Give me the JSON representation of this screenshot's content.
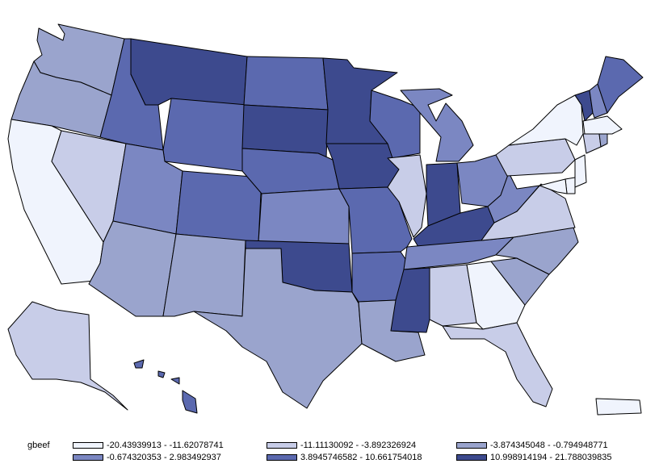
{
  "legend": {
    "title": "gbeef",
    "bins": [
      {
        "label": "-20.43939913 - -11.62078741",
        "color": "#f0f4fd"
      },
      {
        "label": "-11.11130092 - -3.892326924",
        "color": "#c8cde8"
      },
      {
        "label": "-3.874345048 - -0.794948771",
        "color": "#9aa4cd"
      },
      {
        "label": "-0.674320353 - 2.983492937",
        "color": "#7b87c2"
      },
      {
        "label": "3.8945746582 - 10.661754018",
        "color": "#5b69af"
      },
      {
        "label": "10.998914194 - 21.788039835",
        "color": "#3d4a8e"
      }
    ]
  },
  "states": [
    {
      "id": "WA",
      "bin": 2
    },
    {
      "id": "OR",
      "bin": 2
    },
    {
      "id": "CA",
      "bin": 0
    },
    {
      "id": "NV",
      "bin": 1
    },
    {
      "id": "ID",
      "bin": 4
    },
    {
      "id": "MT",
      "bin": 5
    },
    {
      "id": "WY",
      "bin": 4
    },
    {
      "id": "UT",
      "bin": 3
    },
    {
      "id": "AZ",
      "bin": 2
    },
    {
      "id": "CO",
      "bin": 4
    },
    {
      "id": "NM",
      "bin": 2
    },
    {
      "id": "ND",
      "bin": 4
    },
    {
      "id": "SD",
      "bin": 5
    },
    {
      "id": "NE",
      "bin": 4
    },
    {
      "id": "KS",
      "bin": 3
    },
    {
      "id": "OK",
      "bin": 5
    },
    {
      "id": "TX",
      "bin": 2
    },
    {
      "id": "MN",
      "bin": 5
    },
    {
      "id": "IA",
      "bin": 5
    },
    {
      "id": "MO",
      "bin": 4
    },
    {
      "id": "AR",
      "bin": 4
    },
    {
      "id": "LA",
      "bin": 2
    },
    {
      "id": "WI",
      "bin": 4
    },
    {
      "id": "IL",
      "bin": 1
    },
    {
      "id": "MI",
      "bin": 3
    },
    {
      "id": "IN",
      "bin": 5
    },
    {
      "id": "OH",
      "bin": 3
    },
    {
      "id": "KY",
      "bin": 5
    },
    {
      "id": "TN",
      "bin": 3
    },
    {
      "id": "MS",
      "bin": 5
    },
    {
      "id": "AL",
      "bin": 1
    },
    {
      "id": "GA",
      "bin": 0
    },
    {
      "id": "FL",
      "bin": 1
    },
    {
      "id": "SC",
      "bin": 2
    },
    {
      "id": "NC",
      "bin": 2
    },
    {
      "id": "VA",
      "bin": 1
    },
    {
      "id": "WV",
      "bin": 3
    },
    {
      "id": "PA",
      "bin": 1
    },
    {
      "id": "NY",
      "bin": 0
    },
    {
      "id": "VT",
      "bin": 5
    },
    {
      "id": "NH",
      "bin": 3
    },
    {
      "id": "ME",
      "bin": 4
    },
    {
      "id": "MA",
      "bin": 0
    },
    {
      "id": "CT",
      "bin": 1
    },
    {
      "id": "RI",
      "bin": 2
    },
    {
      "id": "NJ",
      "bin": 0
    },
    {
      "id": "DE",
      "bin": 0
    },
    {
      "id": "MD",
      "bin": 0
    },
    {
      "id": "AK",
      "bin": 1
    },
    {
      "id": "HI",
      "bin": 4
    },
    {
      "id": "PR",
      "bin": 0
    }
  ]
}
